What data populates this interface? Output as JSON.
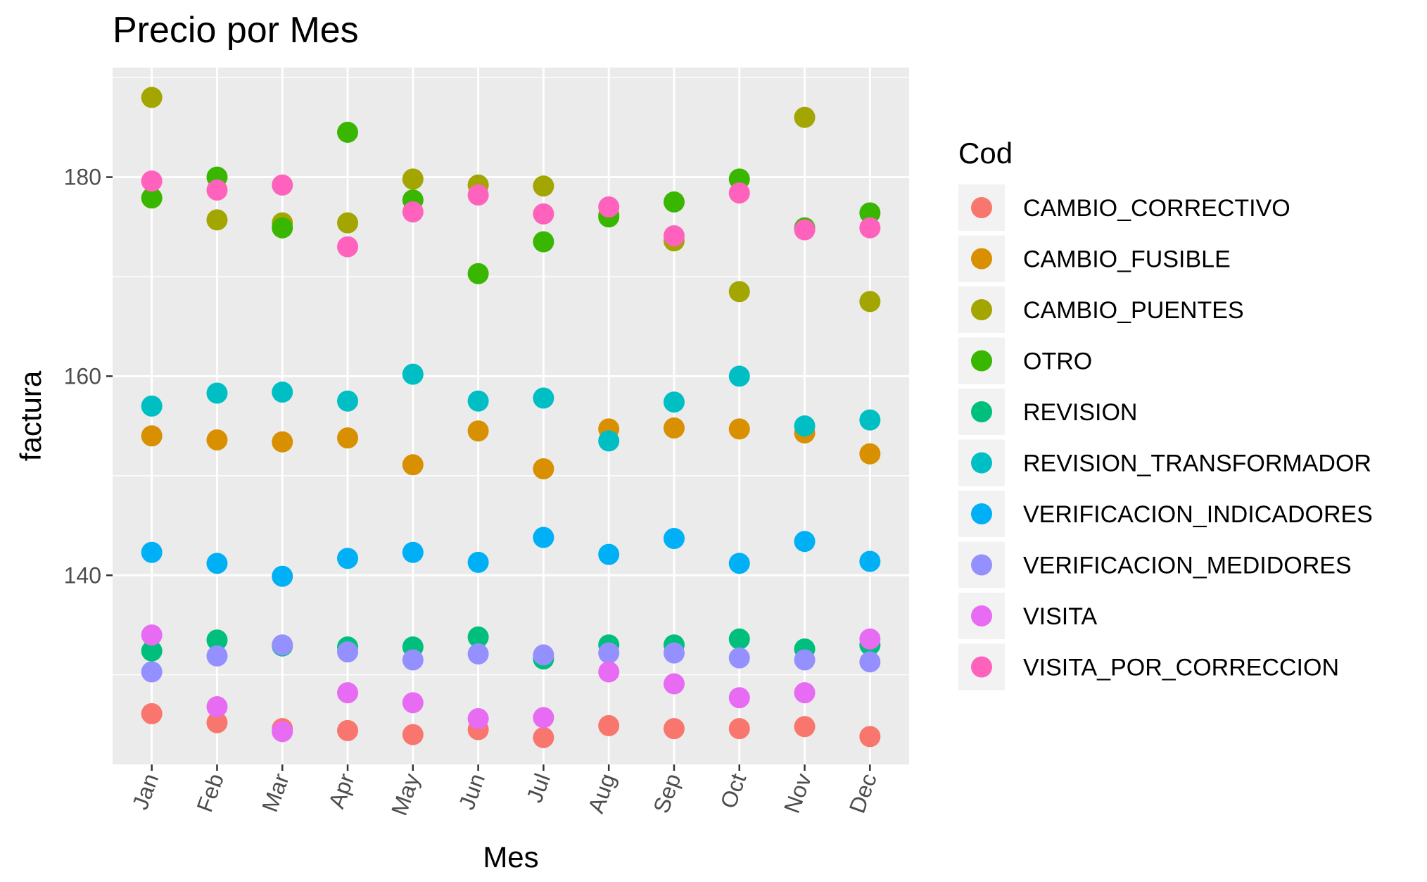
{
  "chart_data": {
    "type": "scatter",
    "title": "Precio por Mes",
    "xlabel": "Mes",
    "ylabel": "factura",
    "categories": [
      "Jan",
      "Feb",
      "Mar",
      "Apr",
      "May",
      "Jun",
      "Jul",
      "Aug",
      "Sep",
      "Oct",
      "Nov",
      "Dec"
    ],
    "ylim": [
      121,
      191
    ],
    "yticks": [
      140,
      160,
      180
    ],
    "grid": true,
    "legend_title": "Cod",
    "legend_position": "right",
    "series": [
      {
        "name": "CAMBIO_CORRECTIVO",
        "color": "#F8766D",
        "values": [
          126.1,
          125.2,
          124.6,
          124.4,
          124.0,
          124.5,
          123.7,
          124.9,
          124.6,
          124.6,
          124.8,
          123.8
        ]
      },
      {
        "name": "CAMBIO_FUSIBLE",
        "color": "#D89000",
        "values": [
          154.0,
          153.6,
          153.4,
          153.8,
          151.1,
          154.5,
          150.7,
          154.7,
          154.8,
          154.7,
          154.3,
          152.2
        ]
      },
      {
        "name": "CAMBIO_PUENTES",
        "color": "#A3A500",
        "values": [
          188.0,
          175.7,
          175.4,
          175.4,
          179.8,
          179.2,
          179.1,
          176.2,
          173.6,
          168.5,
          186.0,
          167.5
        ]
      },
      {
        "name": "OTRO",
        "color": "#39B600",
        "values": [
          177.9,
          180.0,
          174.9,
          184.5,
          177.7,
          170.3,
          173.5,
          176.0,
          177.5,
          179.8,
          174.9,
          176.4
        ]
      },
      {
        "name": "REVISION",
        "color": "#00BF7D",
        "values": [
          132.4,
          133.5,
          132.9,
          132.8,
          132.8,
          133.8,
          131.6,
          133.0,
          133.0,
          133.6,
          132.6,
          133.0
        ]
      },
      {
        "name": "REVISION_TRANSFORMADOR",
        "color": "#00BFC4",
        "values": [
          157.0,
          158.3,
          158.4,
          157.5,
          160.2,
          157.5,
          157.8,
          153.5,
          157.4,
          160.0,
          155.0,
          155.6
        ]
      },
      {
        "name": "VERIFICACION_INDICADORES",
        "color": "#00B0F6",
        "values": [
          142.3,
          141.2,
          139.9,
          141.7,
          142.3,
          141.3,
          143.8,
          142.1,
          143.7,
          141.2,
          143.4,
          141.4
        ]
      },
      {
        "name": "VERIFICACION_MEDIDORES",
        "color": "#9590FF",
        "values": [
          130.3,
          131.9,
          133.0,
          132.3,
          131.5,
          132.1,
          132.0,
          132.2,
          132.2,
          131.7,
          131.5,
          131.3
        ]
      },
      {
        "name": "VISITA",
        "color": "#E76BF3",
        "values": [
          134.0,
          126.8,
          124.3,
          128.2,
          127.2,
          125.6,
          125.7,
          130.3,
          129.1,
          127.7,
          128.2,
          133.6
        ]
      },
      {
        "name": "VISITA_POR_CORRECCION",
        "color": "#FF62BC",
        "values": [
          179.6,
          178.7,
          179.2,
          173.0,
          176.5,
          178.2,
          176.3,
          177.0,
          174.1,
          178.4,
          174.7,
          174.9
        ]
      }
    ]
  }
}
